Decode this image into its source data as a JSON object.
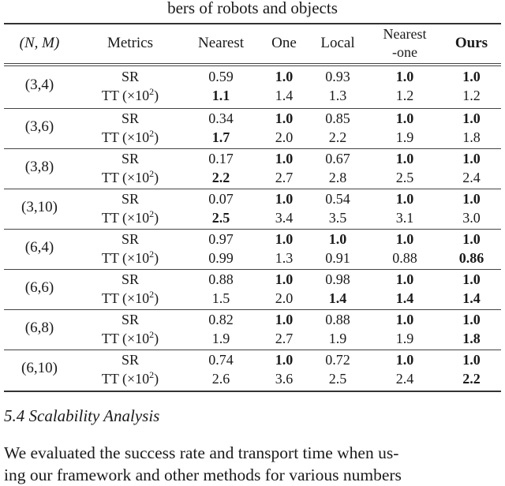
{
  "caption_fragment": "bers of robots and objects",
  "table": {
    "headers": {
      "nm": "(N, M)",
      "metrics": "Metrics",
      "nearest": "Nearest",
      "one": "One",
      "local": "Local",
      "nearest_one_line1": "Nearest",
      "nearest_one_line2": "-one",
      "ours": "Ours"
    },
    "metric_labels": {
      "sr": "SR",
      "tt_prefix": "TT (×10",
      "tt_exp": "2",
      "tt_suffix": ")"
    },
    "groups": [
      {
        "nm": "(3,4)",
        "sr": {
          "nearest": "0.59",
          "one": "1.0",
          "local": "0.93",
          "nearest_one": "1.0",
          "ours": "1.0"
        },
        "tt": {
          "nearest": "1.1",
          "one": "1.4",
          "local": "1.3",
          "nearest_one": "1.2",
          "ours": "1.2"
        }
      },
      {
        "nm": "(3,6)",
        "sr": {
          "nearest": "0.34",
          "one": "1.0",
          "local": "0.85",
          "nearest_one": "1.0",
          "ours": "1.0"
        },
        "tt": {
          "nearest": "1.7",
          "one": "2.0",
          "local": "2.2",
          "nearest_one": "1.9",
          "ours": "1.8"
        }
      },
      {
        "nm": "(3,8)",
        "sr": {
          "nearest": "0.17",
          "one": "1.0",
          "local": "0.67",
          "nearest_one": "1.0",
          "ours": "1.0"
        },
        "tt": {
          "nearest": "2.2",
          "one": "2.7",
          "local": "2.8",
          "nearest_one": "2.5",
          "ours": "2.4"
        }
      },
      {
        "nm": "(3,10)",
        "sr": {
          "nearest": "0.07",
          "one": "1.0",
          "local": "0.54",
          "nearest_one": "1.0",
          "ours": "1.0"
        },
        "tt": {
          "nearest": "2.5",
          "one": "3.4",
          "local": "3.5",
          "nearest_one": "3.1",
          "ours": "3.0"
        }
      },
      {
        "nm": "(6,4)",
        "sr": {
          "nearest": "0.97",
          "one": "1.0",
          "local": "1.0",
          "nearest_one": "1.0",
          "ours": "1.0"
        },
        "tt": {
          "nearest": "0.99",
          "one": "1.3",
          "local": "0.91",
          "nearest_one": "0.88",
          "ours": "0.86"
        }
      },
      {
        "nm": "(6,6)",
        "sr": {
          "nearest": "0.88",
          "one": "1.0",
          "local": "0.98",
          "nearest_one": "1.0",
          "ours": "1.0"
        },
        "tt": {
          "nearest": "1.5",
          "one": "2.0",
          "local": "1.4",
          "nearest_one": "1.4",
          "ours": "1.4"
        }
      },
      {
        "nm": "(6,8)",
        "sr": {
          "nearest": "0.82",
          "one": "1.0",
          "local": "0.88",
          "nearest_one": "1.0",
          "ours": "1.0"
        },
        "tt": {
          "nearest": "1.9",
          "one": "2.7",
          "local": "1.9",
          "nearest_one": "1.9",
          "ours": "1.8"
        }
      },
      {
        "nm": "(6,10)",
        "sr": {
          "nearest": "0.74",
          "one": "1.0",
          "local": "0.72",
          "nearest_one": "1.0",
          "ours": "1.0"
        },
        "tt": {
          "nearest": "2.6",
          "one": "3.6",
          "local": "2.5",
          "nearest_one": "2.4",
          "ours": "2.2"
        }
      }
    ]
  },
  "section_heading": "5.4  Scalability Analysis",
  "body_text_line1": "We evaluated the success rate and transport time when us-",
  "body_text_line2": "ing our framework and other methods for various numbers"
}
